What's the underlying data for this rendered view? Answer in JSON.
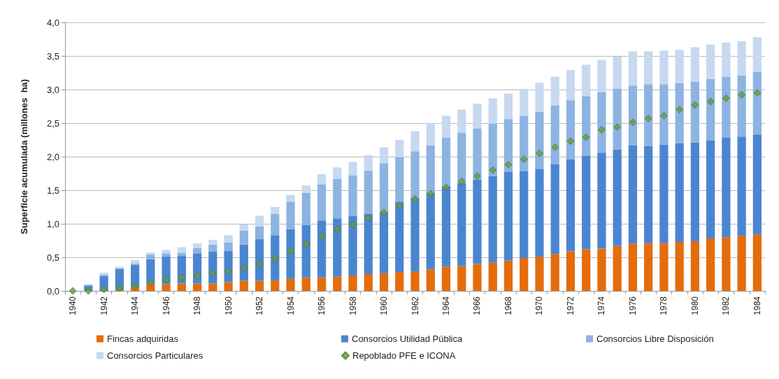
{
  "chart_data": {
    "type": "bar",
    "stacked": true,
    "ylabel": "Superficie acumulada (millones  ha)",
    "categories": [
      "1940",
      null,
      "1942",
      null,
      "1944",
      null,
      "1946",
      null,
      "1948",
      null,
      "1950",
      null,
      "1952",
      null,
      "1954",
      null,
      "1956",
      null,
      "1958",
      null,
      "1960",
      null,
      "1962",
      null,
      "1964",
      null,
      "1966",
      null,
      "1968",
      null,
      "1970",
      null,
      "1972",
      null,
      "1974",
      null,
      "1976",
      null,
      "1978",
      null,
      "1980",
      null,
      "1982",
      null,
      "1984"
    ],
    "ylim": [
      0,
      4
    ],
    "yticks": [
      {
        "value": 0,
        "label": "0,0"
      },
      {
        "value": 0.5,
        "label": "0,5"
      },
      {
        "value": 1,
        "label": "1,0"
      },
      {
        "value": 1.5,
        "label": "1,5"
      },
      {
        "value": 2,
        "label": "2,0"
      },
      {
        "value": 2.5,
        "label": "2,5"
      },
      {
        "value": 3,
        "label": "3,0"
      },
      {
        "value": 3.5,
        "label": "3,5"
      },
      {
        "value": 4,
        "label": "4,0"
      }
    ],
    "grid": "y",
    "legend": "bottom",
    "series": [
      {
        "name": "Fincas adquiridas",
        "color": "#e46c0a",
        "values": [
          0,
          0,
          0,
          0.01,
          0.05,
          0.1,
          0.1,
          0.11,
          0.11,
          0.11,
          0.13,
          0.15,
          0.15,
          0.16,
          0.18,
          0.2,
          0.2,
          0.21,
          0.23,
          0.25,
          0.26,
          0.28,
          0.29,
          0.32,
          0.36,
          0.37,
          0.4,
          0.42,
          0.45,
          0.49,
          0.51,
          0.55,
          0.59,
          0.62,
          0.63,
          0.67,
          0.7,
          0.71,
          0.71,
          0.73,
          0.74,
          0.78,
          0.8,
          0.82,
          0.84
        ]
      },
      {
        "name": "Consorcios Utilidad Pública",
        "color": "#4a86d0",
        "values": [
          0,
          0.08,
          0.22,
          0.32,
          0.34,
          0.37,
          0.41,
          0.41,
          0.45,
          0.48,
          0.47,
          0.54,
          0.62,
          0.67,
          0.74,
          0.78,
          0.85,
          0.87,
          0.89,
          0.9,
          0.92,
          1.05,
          1.1,
          1.14,
          1.2,
          1.24,
          1.26,
          1.29,
          1.32,
          1.29,
          1.31,
          1.34,
          1.37,
          1.39,
          1.43,
          1.44,
          1.47,
          1.45,
          1.47,
          1.47,
          1.47,
          1.46,
          1.48,
          1.48,
          1.49
        ]
      },
      {
        "name": "Consorcios Libre Disposición",
        "color": "#8db3e2",
        "values": [
          0,
          0.01,
          0.02,
          0.01,
          0.02,
          0.07,
          0.05,
          0.05,
          0.08,
          0.1,
          0.12,
          0.21,
          0.19,
          0.32,
          0.41,
          0.48,
          0.54,
          0.59,
          0.6,
          0.64,
          0.72,
          0.66,
          0.69,
          0.71,
          0.72,
          0.75,
          0.76,
          0.78,
          0.79,
          0.83,
          0.85,
          0.87,
          0.88,
          0.89,
          0.9,
          0.9,
          0.89,
          0.92,
          0.9,
          0.9,
          0.91,
          0.92,
          0.91,
          0.91,
          0.93
        ]
      },
      {
        "name": "Consorcios Particulares",
        "color": "#c6d9f1",
        "values": [
          0,
          0.01,
          0.03,
          0.02,
          0.05,
          0.03,
          0.05,
          0.08,
          0.07,
          0.07,
          0.11,
          0.09,
          0.16,
          0.1,
          0.1,
          0.11,
          0.15,
          0.17,
          0.2,
          0.23,
          0.24,
          0.26,
          0.3,
          0.33,
          0.33,
          0.34,
          0.37,
          0.38,
          0.38,
          0.4,
          0.43,
          0.43,
          0.45,
          0.47,
          0.48,
          0.48,
          0.51,
          0.49,
          0.5,
          0.49,
          0.51,
          0.51,
          0.51,
          0.51,
          0.52
        ]
      },
      {
        "name": "Repoblado PFE e ICONA",
        "type": "scatter",
        "marker": "diamond",
        "color": "#6a9a3a",
        "values": [
          0,
          0,
          0.02,
          0.04,
          0.07,
          0.12,
          0.17,
          0.2,
          0.23,
          0.27,
          0.29,
          0.34,
          0.4,
          0.49,
          0.59,
          0.7,
          0.81,
          0.92,
          0.99,
          1.09,
          1.17,
          1.27,
          1.37,
          1.45,
          1.54,
          1.63,
          1.71,
          1.8,
          1.88,
          1.96,
          2.05,
          2.14,
          2.23,
          2.29,
          2.4,
          2.44,
          2.51,
          2.57,
          2.61,
          2.7,
          2.77,
          2.82,
          2.87,
          2.92,
          2.95
        ]
      }
    ]
  }
}
